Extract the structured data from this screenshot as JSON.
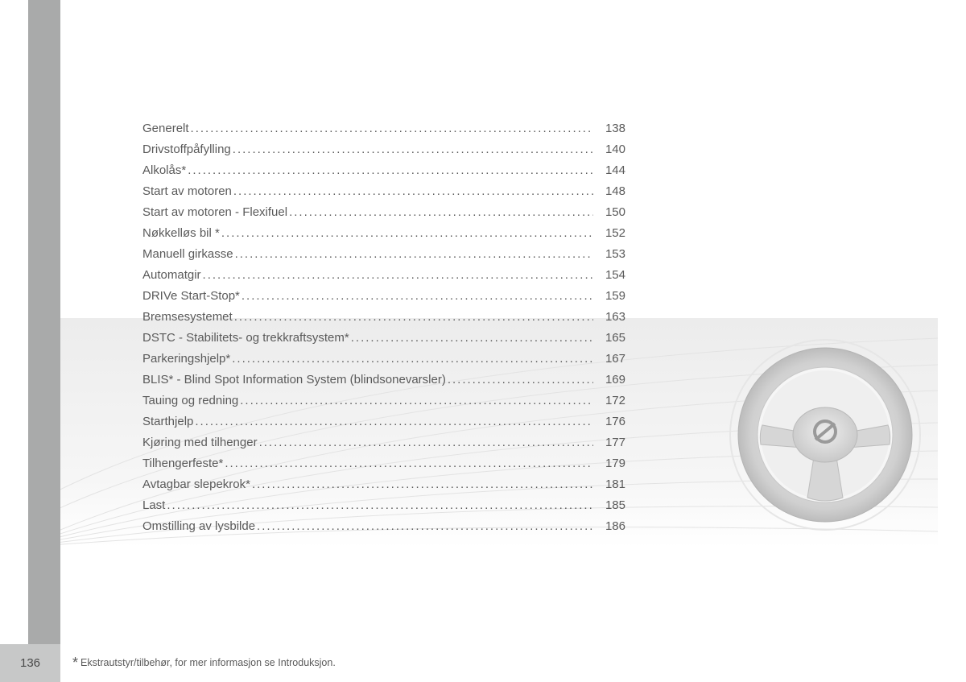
{
  "page_number": "136",
  "footnote_star": "*",
  "footnote_text": "Ekstrautstyr/tilbehør, for mer informasjon se Introduksjon.",
  "colors": {
    "gutter": "#a9aaaa",
    "pagebox": "#c7c8c8",
    "band_top": "#ececec",
    "text": "#5a5a5a",
    "wheel_light": "#d5d5d5",
    "wheel_mid": "#bfbfbf",
    "wheel_dark": "#9a9a9a",
    "line_art": "#e3e3e3"
  },
  "toc": [
    {
      "label": "Generelt",
      "page": "138"
    },
    {
      "label": "Drivstoffpåfylling",
      "page": "140"
    },
    {
      "label": "Alkolås*",
      "page": "144"
    },
    {
      "label": "Start av motoren",
      "page": "148"
    },
    {
      "label": "Start av motoren - Flexifuel",
      "page": "150"
    },
    {
      "label": "Nøkkelløs bil * ",
      "page": "152"
    },
    {
      "label": "Manuell girkasse",
      "page": "153"
    },
    {
      "label": "Automatgir",
      "page": "154"
    },
    {
      "label": "DRIVe Start-Stop*",
      "page": "159"
    },
    {
      "label": "Bremsesystemet",
      "page": "163"
    },
    {
      "label": "DSTC - Stabilitets- og trekkraftsystem*",
      "page": "165"
    },
    {
      "label": "Parkeringshjelp*",
      "page": "167"
    },
    {
      "label": "BLIS* - Blind Spot Information System (blindsonevarsler)",
      "page": "169"
    },
    {
      "label": "Tauing og redning",
      "page": "172"
    },
    {
      "label": "Starthjelp",
      "page": "176"
    },
    {
      "label": "Kjøring med tilhenger",
      "page": "177"
    },
    {
      "label": "Tilhengerfeste*",
      "page": "179"
    },
    {
      "label": "Avtagbar slepekrok* ",
      "page": "181"
    },
    {
      "label": "Last ",
      "page": "185"
    },
    {
      "label": "Omstilling av lysbilde",
      "page": "186"
    }
  ]
}
